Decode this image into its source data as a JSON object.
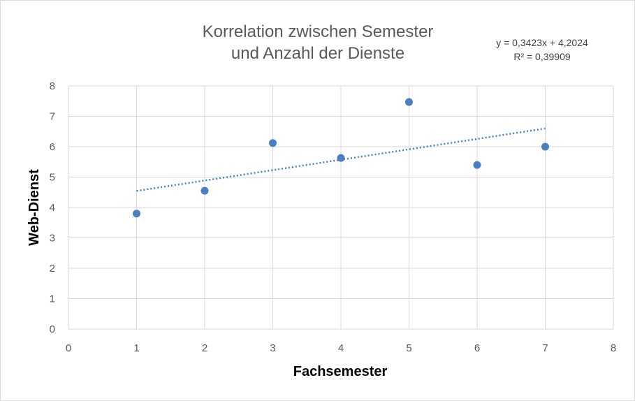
{
  "chart_data": {
    "type": "scatter",
    "title_lines": [
      "Korrelation zwischen Semester",
      "und Anzahl der Dienste"
    ],
    "xlabel": "Fachsemester",
    "ylabel": "Web-Dienst",
    "xlim": [
      0,
      8
    ],
    "ylim": [
      0,
      8
    ],
    "x_ticks": [
      0,
      1,
      2,
      3,
      4,
      5,
      6,
      7,
      8
    ],
    "y_ticks": [
      0,
      1,
      2,
      3,
      4,
      5,
      6,
      7,
      8
    ],
    "grid": true,
    "points": [
      {
        "x": 1,
        "y": 3.8
      },
      {
        "x": 2,
        "y": 4.55
      },
      {
        "x": 3,
        "y": 6.12
      },
      {
        "x": 4,
        "y": 5.63
      },
      {
        "x": 5,
        "y": 7.47
      },
      {
        "x": 6,
        "y": 5.4
      },
      {
        "x": 7,
        "y": 6.0
      }
    ],
    "trendline": {
      "slope": 0.3423,
      "intercept": 4.2024,
      "x_range": [
        1,
        7
      ],
      "style": "dotted",
      "equation_label": "y = 0,3423x + 4,2024",
      "r2_label": "R² = 0,39909"
    },
    "colors": {
      "marker": "#4a7fc1",
      "trendline": "#4a7fc1",
      "grid": "#d9d9d9"
    }
  }
}
